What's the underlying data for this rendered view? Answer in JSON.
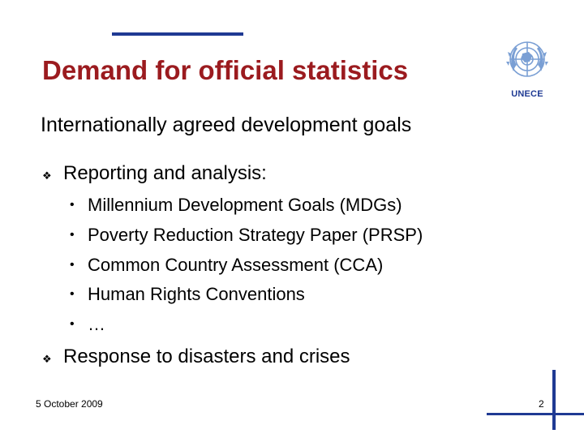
{
  "slide": {
    "title": "Demand for official statistics",
    "subtitle": "Internationally agreed development goals",
    "logo_label": "UNECE",
    "points": [
      {
        "text": "Reporting and analysis:",
        "subpoints": [
          "Millennium Development Goals (MDGs)",
          "Poverty Reduction Strategy Paper (PRSP)",
          "Common Country Assessment (CCA)",
          "Human Rights Conventions",
          "…"
        ]
      },
      {
        "text": "Response to disasters and crises",
        "subpoints": []
      }
    ],
    "footer": {
      "date": "5 October 2009",
      "page": "2"
    }
  },
  "colors": {
    "title": "#9b1b1f",
    "accent": "#1f3a93",
    "logo": "#7a9fd4"
  },
  "icons": {
    "level1_bullet": "diamond-bullet-icon",
    "level2_bullet": "dot-bullet-icon",
    "logo": "un-emblem-icon"
  }
}
